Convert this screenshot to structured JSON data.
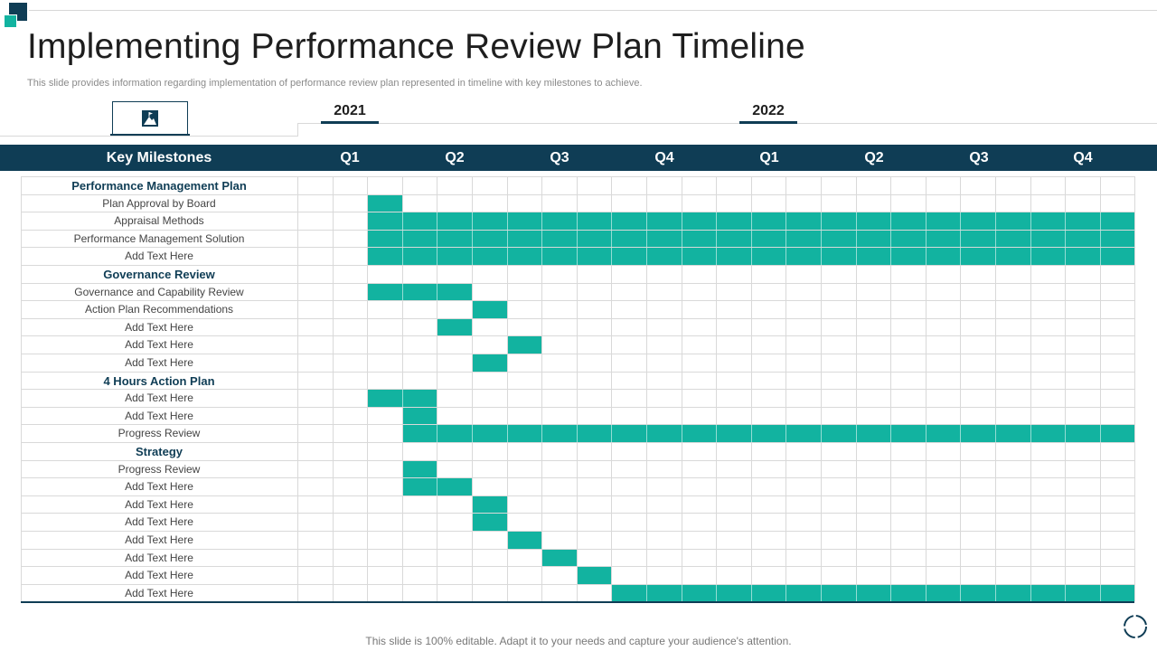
{
  "header": {
    "title": "Implementing Performance Review Plan Timeline",
    "subtitle": "This slide provides information regarding implementation of performance review plan represented in timeline with key milestones to achieve."
  },
  "years": [
    "2021",
    "2022"
  ],
  "table": {
    "milestones_header": "Key Milestones",
    "quarters": [
      "Q1",
      "Q2",
      "Q3",
      "Q4",
      "Q1",
      "Q2",
      "Q3",
      "Q4"
    ]
  },
  "colors": {
    "dark": "#0f3d55",
    "accent": "#12b3a0",
    "grid": "#d9d9d9"
  },
  "icons": {
    "milestone": "mountain-flag-icon",
    "footer": "circle-arrows-icon"
  },
  "rows": [
    {
      "label": "Performance Management Plan",
      "section": true
    },
    {
      "label": "Plan Approval by Board",
      "start": 2,
      "end": 2
    },
    {
      "label": "Appraisal Methods",
      "start": 2,
      "end": 23
    },
    {
      "label": "Performance Management Solution",
      "start": 2,
      "end": 23
    },
    {
      "label": "Add Text Here",
      "start": 2,
      "end": 23
    },
    {
      "label": "Governance Review",
      "section": true
    },
    {
      "label": "Governance and Capability Review",
      "start": 2,
      "end": 4
    },
    {
      "label": "Action Plan Recommendations",
      "start": 5,
      "end": 5
    },
    {
      "label": "Add Text Here",
      "start": 4,
      "end": 4
    },
    {
      "label": "Add Text Here",
      "start": 6,
      "end": 6
    },
    {
      "label": "Add Text Here",
      "start": 5,
      "end": 5
    },
    {
      "label": "4 Hours  Action Plan",
      "section": true
    },
    {
      "label": "Add Text Here",
      "start": 2,
      "end": 3
    },
    {
      "label": "Add Text Here",
      "start": 3,
      "end": 3
    },
    {
      "label": "Progress Review",
      "start": 3,
      "end": 23
    },
    {
      "label": "Strategy",
      "section": true
    },
    {
      "label": "Progress Review",
      "start": 3,
      "end": 3
    },
    {
      "label": "Add Text Here",
      "start": 3,
      "end": 4
    },
    {
      "label": "Add Text Here",
      "start": 5,
      "end": 5
    },
    {
      "label": "Add Text Here",
      "start": 5,
      "end": 5
    },
    {
      "label": "Add Text Here",
      "start": 6,
      "end": 6
    },
    {
      "label": "Add Text Here",
      "start": 7,
      "end": 7
    },
    {
      "label": "Add Text Here",
      "start": 8,
      "end": 8
    },
    {
      "label": "Add Text Here",
      "start": 9,
      "end": 23
    }
  ],
  "footer": "This slide is 100% editable. Adapt it to your needs and capture your audience's attention."
}
